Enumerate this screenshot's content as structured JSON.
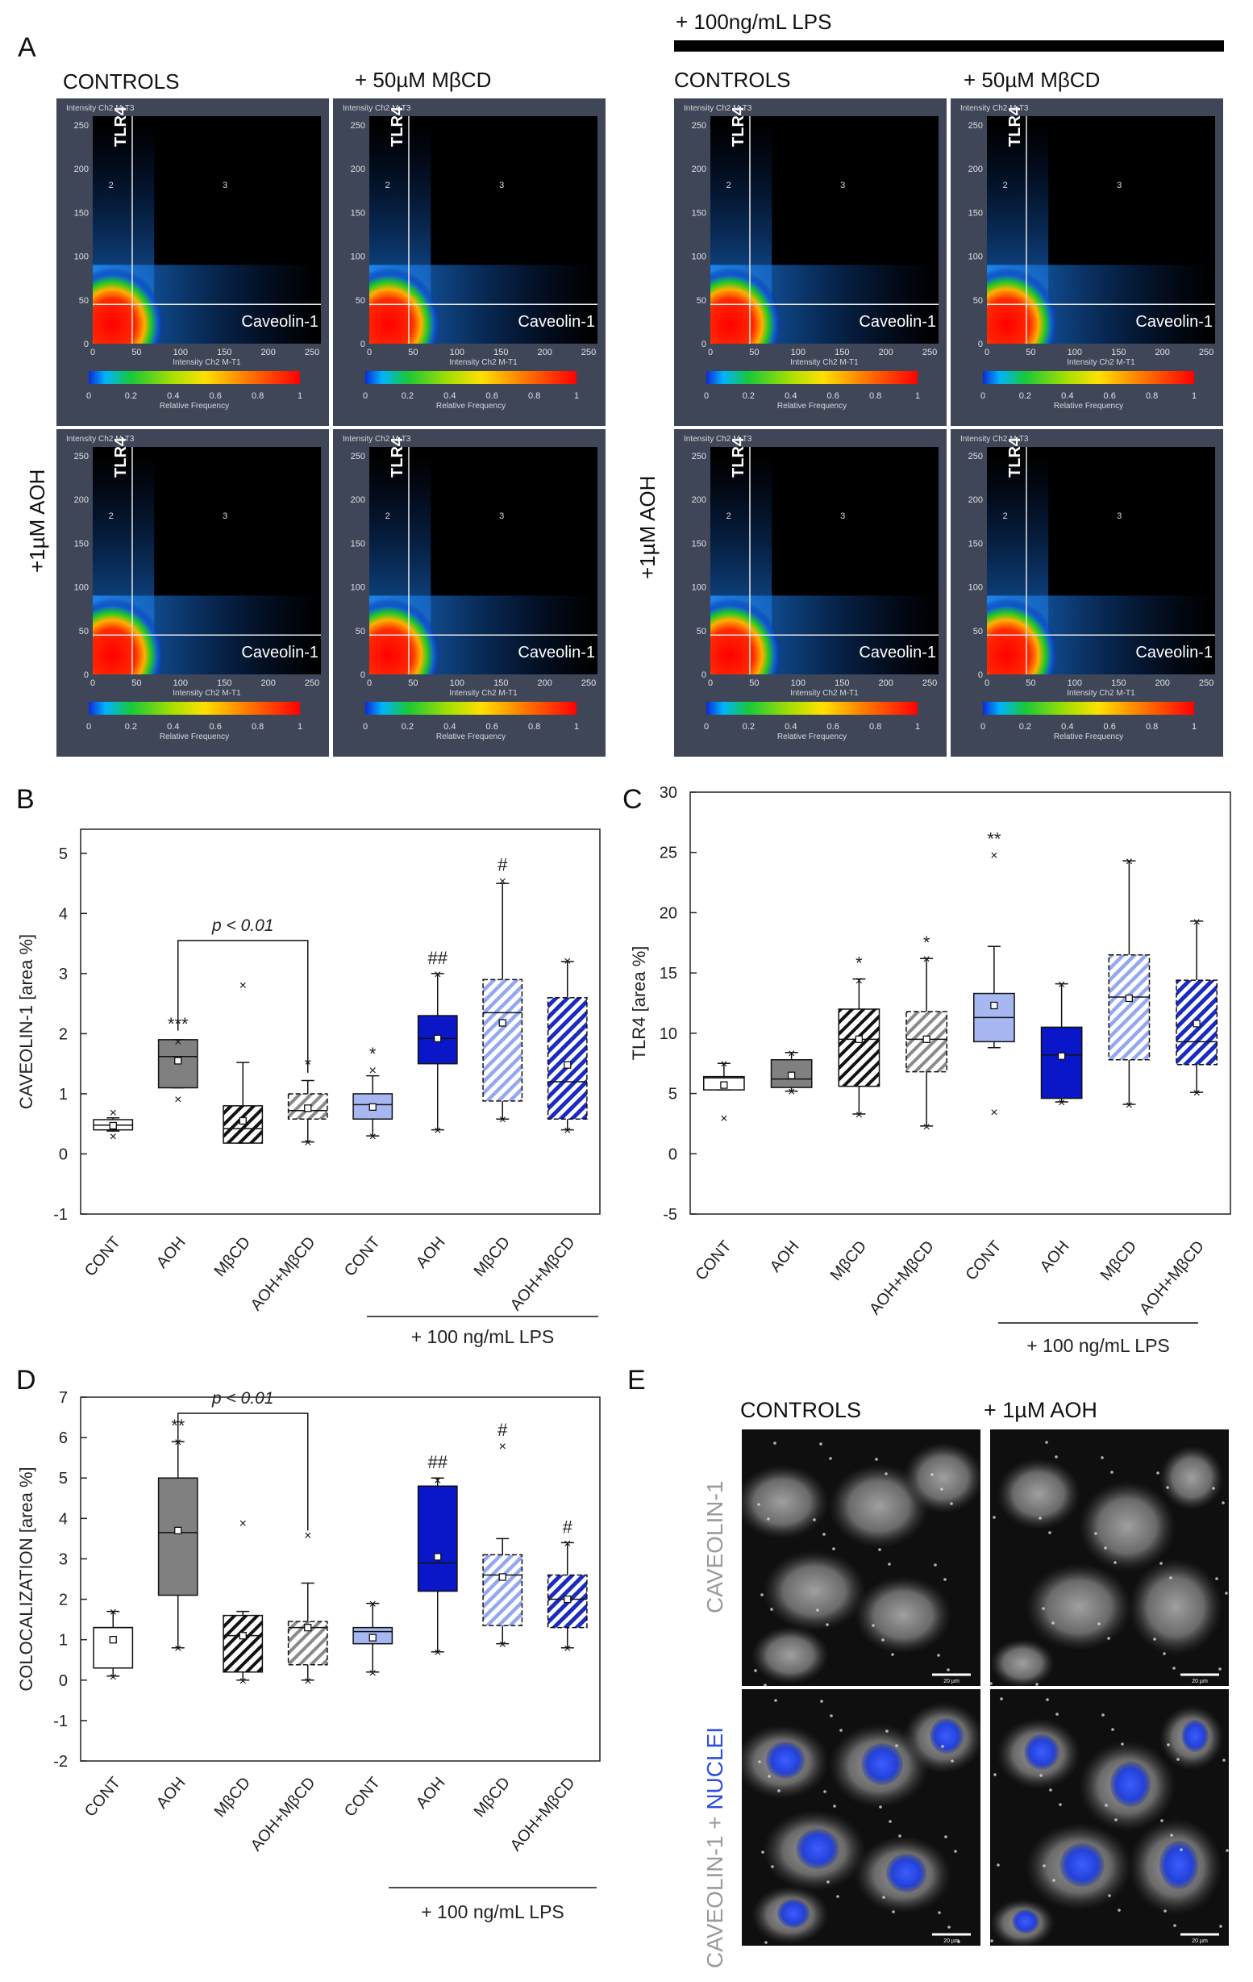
{
  "panels": {
    "a": {
      "letter": "A",
      "lps_header": "+ 100ng/mL  LPS",
      "col_controls": "CONTROLS",
      "col_mbcd": "+ 50µM  MβCD",
      "row_aoh": "+1µM AOH",
      "scatter": {
        "y_axis_title": "Intensity Ch2 M-T3",
        "x_axis_title": "Intensity Ch2 M-T1",
        "y_label": "TLR4",
        "x_label": "Caveolin-1",
        "ticks": [
          "0",
          "50",
          "100",
          "150",
          "200",
          "250"
        ],
        "quadrant_2": "2",
        "quadrant_3": "3",
        "colorbar_ticks": [
          "0",
          "0.2",
          "0.4",
          "0.6",
          "0.8",
          "1"
        ],
        "colorbar_label": "Relative Frequency"
      }
    },
    "b": {
      "letter": "B"
    },
    "c": {
      "letter": "C"
    },
    "d": {
      "letter": "D"
    },
    "e": {
      "letter": "E",
      "col_controls": "CONTROLS",
      "col_aoh": "+ 1µM AOH",
      "row1": "CAVEOLIN-1",
      "row2_a": "CAVEOLIN-1 + ",
      "row2_b": "NUCLEI",
      "scale_text": "20 µm"
    }
  },
  "colors": {
    "panel_bg": "#3e4658",
    "plot_bg": "#000000",
    "cont": "#ffffff",
    "aoh": "#808080",
    "lps_aoh": "#0a17c8",
    "lps_cont": "#a7b7f2",
    "hatch_light": "#8fa2ee",
    "hatch_dark": "#1a2bbf",
    "nuclei": "#2b4ee0"
  },
  "chart_data": [
    {
      "id": "B",
      "type": "box",
      "ylabel": "CAVEOLIN-1 [area %]",
      "ylim": [
        -1,
        5.4
      ],
      "yticks": [
        -1,
        0,
        1,
        2,
        3,
        4,
        5
      ],
      "categories": [
        "CONT",
        "AOH",
        "MβCD",
        "AOH+MβCD",
        "CONT",
        "AOH",
        "MβCD",
        "AOH+MβCD"
      ],
      "group_label": "+ 100 ng/mL LPS",
      "comparison": {
        "from": 1,
        "to": 3,
        "text": "p < 0.01"
      },
      "boxes": [
        {
          "q1": 0.4,
          "median": 0.48,
          "q3": 0.57,
          "wlo": 0.38,
          "whi": 0.6,
          "mean": 0.47,
          "outliers": [
            0.3,
            0.7
          ],
          "sig": "",
          "style": "cont"
        },
        {
          "q1": 1.1,
          "median": 1.62,
          "q3": 1.9,
          "wlo": 1.1,
          "whi": 1.9,
          "mean": 1.55,
          "outliers": [
            0.92,
            1.88
          ],
          "sig": "***",
          "style": "aoh"
        },
        {
          "q1": 0.18,
          "median": 0.42,
          "q3": 0.8,
          "wlo": 0.18,
          "whi": 1.52,
          "mean": 0.55,
          "outliers": [
            2.82
          ],
          "sig": "",
          "style": "hatch_black"
        },
        {
          "q1": 0.58,
          "median": 0.72,
          "q3": 1.0,
          "wlo": 0.2,
          "whi": 1.22,
          "mean": 0.76,
          "outliers": [
            0.2
          ],
          "sig": "*",
          "style": "hatch_gray"
        },
        {
          "q1": 0.58,
          "median": 0.82,
          "q3": 1.0,
          "wlo": 0.3,
          "whi": 1.3,
          "mean": 0.78,
          "outliers": [
            0.3,
            1.4
          ],
          "sig": "*",
          "style": "lps_cont"
        },
        {
          "q1": 1.5,
          "median": 1.92,
          "q3": 2.3,
          "wlo": 0.4,
          "whi": 3.0,
          "mean": 1.92,
          "outliers": [
            0.4,
            3.0
          ],
          "sig": "##",
          "style": "lps_aoh"
        },
        {
          "q1": 0.88,
          "median": 2.35,
          "q3": 2.9,
          "wlo": 0.58,
          "whi": 4.5,
          "mean": 2.18,
          "outliers": [
            0.58,
            4.55
          ],
          "sig": "#",
          "style": "hatch_light"
        },
        {
          "q1": 0.58,
          "median": 1.2,
          "q3": 2.6,
          "wlo": 0.4,
          "whi": 3.2,
          "mean": 1.48,
          "outliers": [
            0.4,
            3.22
          ],
          "sig": "",
          "style": "hatch_dark"
        }
      ]
    },
    {
      "id": "C",
      "type": "box",
      "ylabel": "TLR4 [area %]",
      "ylim": [
        -5,
        30
      ],
      "yticks": [
        -5,
        0,
        5,
        10,
        15,
        20,
        25,
        30
      ],
      "categories": [
        "CONT",
        "AOH",
        "MβCD",
        "AOH+MβCD",
        "CONT",
        "AOH",
        "MβCD",
        "AOH+MβCD"
      ],
      "group_label": "+ 100 ng/mL LPS",
      "boxes": [
        {
          "q1": 5.3,
          "median": 6.3,
          "q3": 6.4,
          "wlo": 5.3,
          "whi": 7.5,
          "mean": 5.7,
          "outliers": [
            3.0,
            7.5
          ],
          "sig": "",
          "style": "cont"
        },
        {
          "q1": 5.5,
          "median": 6.2,
          "q3": 7.8,
          "wlo": 5.2,
          "whi": 8.4,
          "mean": 6.5,
          "outliers": [
            5.2,
            8.4
          ],
          "sig": "",
          "style": "aoh"
        },
        {
          "q1": 5.6,
          "median": 9.5,
          "q3": 12.0,
          "wlo": 3.3,
          "whi": 14.5,
          "mean": 9.5,
          "outliers": [
            3.3,
            14.4
          ],
          "sig": "*",
          "style": "hatch_black"
        },
        {
          "q1": 6.8,
          "median": 9.5,
          "q3": 11.8,
          "wlo": 2.3,
          "whi": 16.2,
          "mean": 9.5,
          "outliers": [
            2.3,
            16.2
          ],
          "sig": "*",
          "style": "hatch_gray"
        },
        {
          "q1": 9.3,
          "median": 11.3,
          "q3": 13.3,
          "wlo": 8.8,
          "whi": 17.2,
          "mean": 12.3,
          "outliers": [
            3.5,
            24.8
          ],
          "sig": "**",
          "style": "lps_cont"
        },
        {
          "q1": 4.6,
          "median": 8.2,
          "q3": 10.5,
          "wlo": 4.3,
          "whi": 14.1,
          "mean": 8.1,
          "outliers": [
            4.3,
            14.1
          ],
          "sig": "",
          "style": "lps_aoh"
        },
        {
          "q1": 7.8,
          "median": 13.0,
          "q3": 16.5,
          "wlo": 4.1,
          "whi": 24.3,
          "mean": 12.9,
          "outliers": [
            4.1,
            24.3
          ],
          "sig": "",
          "style": "hatch_light"
        },
        {
          "q1": 7.4,
          "median": 9.3,
          "q3": 14.4,
          "wlo": 5.1,
          "whi": 19.3,
          "mean": 10.8,
          "outliers": [
            5.1,
            19.3
          ],
          "sig": "",
          "style": "hatch_dark"
        }
      ]
    },
    {
      "id": "D",
      "type": "box",
      "ylabel": "COLOCALIZATION [area %]",
      "ylim": [
        -2,
        7
      ],
      "yticks": [
        -2,
        -1,
        0,
        1,
        2,
        3,
        4,
        5,
        6,
        7
      ],
      "categories": [
        "CONT",
        "AOH",
        "MβCD",
        "AOH+MβCD",
        "CONT",
        "AOH",
        "MβCD",
        "AOH+MβCD"
      ],
      "group_label": "+ 100 ng/mL LPS",
      "comparison": {
        "from": 1,
        "to": 3,
        "text": "p < 0.01"
      },
      "boxes": [
        {
          "q1": 0.3,
          "median": 1.3,
          "q3": 1.3,
          "wlo": 0.1,
          "whi": 1.7,
          "mean": 1.0,
          "outliers": [
            0.1,
            1.7
          ],
          "sig": "",
          "style": "cont"
        },
        {
          "q1": 2.1,
          "median": 3.65,
          "q3": 5.0,
          "wlo": 0.8,
          "whi": 5.9,
          "mean": 3.7,
          "outliers": [
            0.8,
            5.9
          ],
          "sig": "**",
          "style": "aoh"
        },
        {
          "q1": 0.2,
          "median": 1.1,
          "q3": 1.6,
          "wlo": 0.0,
          "whi": 1.7,
          "mean": 1.1,
          "outliers": [
            0.0,
            3.9
          ],
          "sig": "",
          "style": "hatch_black"
        },
        {
          "q1": 0.38,
          "median": 1.3,
          "q3": 1.45,
          "wlo": 0.0,
          "whi": 2.4,
          "mean": 1.3,
          "outliers": [
            0.0,
            3.6
          ],
          "sig": "",
          "style": "hatch_gray"
        },
        {
          "q1": 0.9,
          "median": 1.2,
          "q3": 1.3,
          "wlo": 0.2,
          "whi": 1.9,
          "mean": 1.05,
          "outliers": [
            0.2,
            1.9
          ],
          "sig": "",
          "style": "lps_cont"
        },
        {
          "q1": 2.2,
          "median": 2.9,
          "q3": 4.8,
          "wlo": 0.7,
          "whi": 5.0,
          "mean": 3.05,
          "outliers": [
            0.7,
            4.95
          ],
          "sig": "##",
          "style": "lps_aoh"
        },
        {
          "q1": 1.35,
          "median": 2.6,
          "q3": 3.1,
          "wlo": 0.9,
          "whi": 3.5,
          "mean": 2.55,
          "outliers": [
            0.9,
            5.8
          ],
          "sig": "#",
          "style": "hatch_light"
        },
        {
          "q1": 1.3,
          "median": 2.0,
          "q3": 2.6,
          "wlo": 0.8,
          "whi": 3.4,
          "mean": 2.0,
          "outliers": [
            0.8,
            3.4
          ],
          "sig": "#",
          "style": "hatch_dark"
        }
      ]
    }
  ]
}
